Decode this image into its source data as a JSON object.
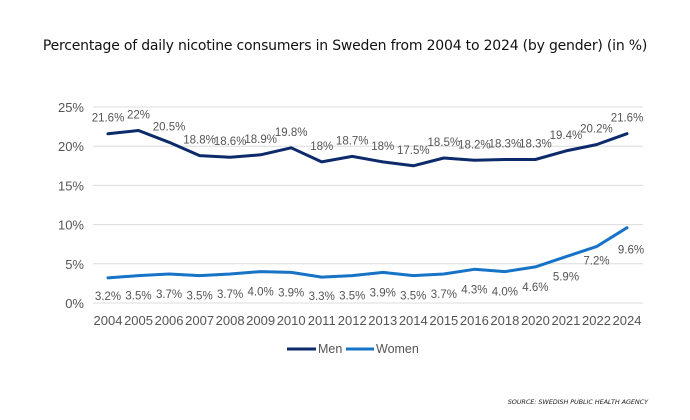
{
  "chart_data": {
    "type": "line",
    "title": "Percentage of daily nicotine consumers in Sweden from 2004 to 2024 (by gender) (in %)",
    "xlabel": "",
    "ylabel": "",
    "categories": [
      "2004",
      "2005",
      "2006",
      "2007",
      "2008",
      "2009",
      "2010",
      "2011",
      "2012",
      "2013",
      "2014",
      "2015",
      "2016",
      "2018",
      "2020",
      "2021",
      "2022",
      "2024"
    ],
    "ylim": [
      0,
      25
    ],
    "yticks": [
      0,
      5,
      10,
      15,
      20,
      25
    ],
    "ytick_labels": [
      "0%",
      "5%",
      "10%",
      "15%",
      "20%",
      "25%"
    ],
    "grid": "horizontal",
    "legend_position": "bottom-center",
    "series": [
      {
        "name": "Men",
        "color": "#0d2a6b",
        "values": [
          21.6,
          22,
          20.5,
          18.8,
          18.6,
          18.9,
          19.8,
          18,
          18.7,
          18,
          17.5,
          18.5,
          18.2,
          18.3,
          18.3,
          19.4,
          20.2,
          21.6
        ],
        "labels": [
          "21.6%",
          "22%",
          "20.5%",
          "18.8%",
          "18.6%",
          "18.9%",
          "19.8%",
          "18%",
          "18.7%",
          "18%",
          "17.5%",
          "18.5%",
          "18.2%",
          "18.3%",
          "18.3%",
          "19.4%",
          "20.2%",
          "21.6%"
        ]
      },
      {
        "name": "Women",
        "color": "#1673c6",
        "values": [
          3.2,
          3.5,
          3.7,
          3.5,
          3.7,
          4.0,
          3.9,
          3.3,
          3.5,
          3.9,
          3.5,
          3.7,
          4.3,
          4.0,
          4.6,
          5.9,
          7.2,
          9.6
        ],
        "labels": [
          "3.2%",
          "3.5%",
          "3.7%",
          "3.5%",
          "3.7%",
          "4.0%",
          "3.9%",
          "3.3%",
          "3.5%",
          "3.9%",
          "3.5%",
          "3.7%",
          "4.3%",
          "4.0%",
          "4.6%",
          "5.9%",
          "7.2%",
          "9.6%"
        ]
      }
    ],
    "source": "SOURCE: SWEDISH PUBLIC HEALTH AGENCY"
  },
  "colors": {
    "gridline": "#dcdcdc",
    "text": "#555555"
  }
}
